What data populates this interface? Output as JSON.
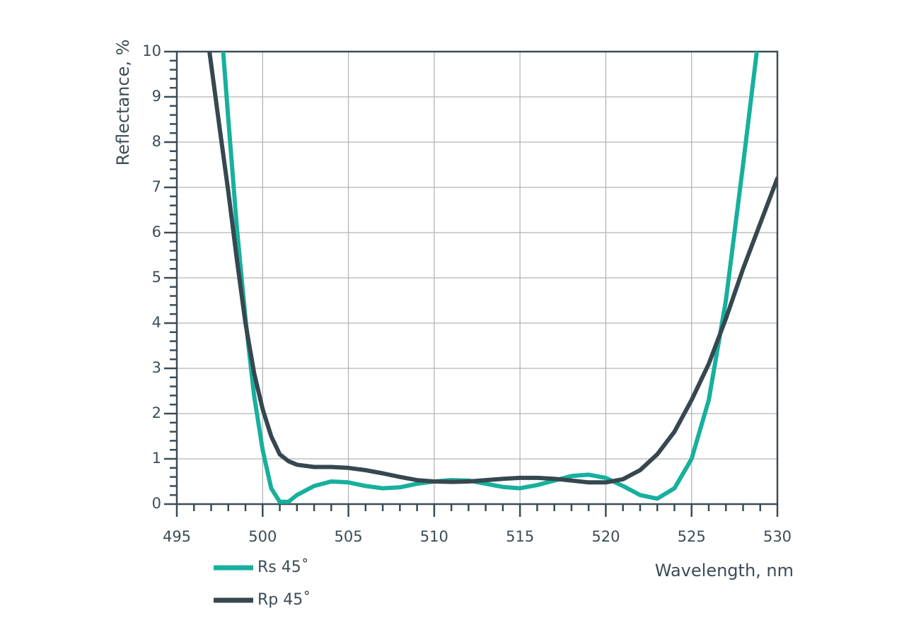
{
  "chart_data": {
    "type": "line",
    "x_label": "Wavelength, nm",
    "y_label": "Reflectance, %",
    "xlim": [
      495,
      530
    ],
    "xticks": [
      495,
      500,
      505,
      510,
      515,
      520,
      525,
      530
    ],
    "ylim": [
      0,
      10
    ],
    "yticks": [
      0,
      1,
      2,
      3,
      4,
      5,
      6,
      7,
      8,
      9,
      10
    ],
    "grid": true,
    "legend": "bottom-left",
    "series": [
      {
        "name": "Rs 45˚",
        "color": "#17b09d",
        "x": [
          497.7,
          498,
          498.5,
          499,
          499.5,
          500,
          500.5,
          501,
          501.5,
          502,
          503,
          504,
          505,
          506,
          507,
          508,
          509,
          510,
          511,
          512,
          513,
          514,
          515,
          516,
          517,
          518,
          519,
          520,
          521,
          522,
          523,
          524,
          525,
          526,
          527,
          528,
          528.8
        ],
        "values": [
          10,
          8.5,
          6.1,
          4.1,
          2.4,
          1.2,
          0.35,
          0.05,
          0.05,
          0.2,
          0.4,
          0.5,
          0.48,
          0.4,
          0.35,
          0.37,
          0.45,
          0.5,
          0.53,
          0.52,
          0.45,
          0.38,
          0.35,
          0.42,
          0.52,
          0.62,
          0.65,
          0.58,
          0.4,
          0.2,
          0.12,
          0.35,
          1.0,
          2.3,
          4.5,
          7.5,
          10
        ]
      },
      {
        "name": "Rp 45˚",
        "color": "#36474f",
        "x": [
          496.9,
          497.5,
          498,
          498.5,
          499,
          499.5,
          500,
          500.5,
          501,
          501.5,
          502,
          503,
          504,
          505,
          506,
          507,
          508,
          509,
          510,
          511,
          512,
          513,
          514,
          515,
          516,
          517,
          518,
          519,
          520,
          521,
          522,
          523,
          524,
          525,
          526,
          527,
          528,
          529,
          530
        ],
        "values": [
          10,
          8.3,
          6.9,
          5.4,
          4.0,
          2.9,
          2.1,
          1.5,
          1.1,
          0.95,
          0.87,
          0.82,
          0.82,
          0.8,
          0.75,
          0.68,
          0.6,
          0.53,
          0.5,
          0.49,
          0.5,
          0.53,
          0.56,
          0.58,
          0.58,
          0.56,
          0.52,
          0.48,
          0.48,
          0.55,
          0.75,
          1.1,
          1.6,
          2.3,
          3.1,
          4.1,
          5.2,
          6.2,
          7.2
        ]
      }
    ]
  }
}
